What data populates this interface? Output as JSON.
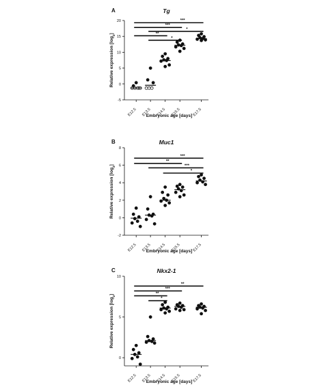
{
  "chart_data": [
    {
      "panel": "A",
      "type": "scatter",
      "title": "Tg",
      "xlabel": "Embryonic age [days]",
      "ylabel": "Relative expression [log",
      "ylabel_sub": "2",
      "ylabel_end": "]",
      "categories": [
        "E12.5",
        "E13.5",
        "E14.5",
        "E15.5",
        "E17.5"
      ],
      "ylim": [
        -5,
        20
      ],
      "yticks": [
        -5,
        0,
        5,
        10,
        15,
        20
      ],
      "points": [
        {
          "cat": 0,
          "y": 0.4,
          "open": false
        },
        {
          "cat": 0,
          "y": -0.6,
          "open": false
        },
        {
          "cat": 0,
          "y": -1.3,
          "open": true
        },
        {
          "cat": 0,
          "y": -1.3,
          "open": true
        },
        {
          "cat": 0,
          "y": -1.3,
          "open": true
        },
        {
          "cat": 0,
          "y": -1.3,
          "open": true
        },
        {
          "cat": 0,
          "y": -1.3,
          "open": true
        },
        {
          "cat": 1,
          "y": 5.0,
          "open": false
        },
        {
          "cat": 1,
          "y": 1.3,
          "open": false
        },
        {
          "cat": 1,
          "y": 0.4,
          "open": false
        },
        {
          "cat": 1,
          "y": -1.3,
          "open": true
        },
        {
          "cat": 1,
          "y": -1.3,
          "open": true
        },
        {
          "cat": 1,
          "y": -1.3,
          "open": true
        },
        {
          "cat": 2,
          "y": 9.5,
          "open": false
        },
        {
          "cat": 2,
          "y": 8.7,
          "open": false
        },
        {
          "cat": 2,
          "y": 8.0,
          "open": false
        },
        {
          "cat": 2,
          "y": 7.6,
          "open": false
        },
        {
          "cat": 2,
          "y": 7.4,
          "open": false
        },
        {
          "cat": 2,
          "y": 7.2,
          "open": false
        },
        {
          "cat": 2,
          "y": 6.0,
          "open": false
        },
        {
          "cat": 2,
          "y": 5.5,
          "open": false
        },
        {
          "cat": 3,
          "y": 13.8,
          "open": false
        },
        {
          "cat": 3,
          "y": 13.2,
          "open": false
        },
        {
          "cat": 3,
          "y": 12.6,
          "open": false
        },
        {
          "cat": 3,
          "y": 12.3,
          "open": false
        },
        {
          "cat": 3,
          "y": 12.1,
          "open": false
        },
        {
          "cat": 3,
          "y": 11.7,
          "open": false
        },
        {
          "cat": 3,
          "y": 11.2,
          "open": false
        },
        {
          "cat": 3,
          "y": 10.3,
          "open": false
        },
        {
          "cat": 4,
          "y": 15.8,
          "open": false
        },
        {
          "cat": 4,
          "y": 15.3,
          "open": false
        },
        {
          "cat": 4,
          "y": 14.9,
          "open": false
        },
        {
          "cat": 4,
          "y": 14.6,
          "open": false
        },
        {
          "cat": 4,
          "y": 14.3,
          "open": false
        },
        {
          "cat": 4,
          "y": 14.1,
          "open": false
        },
        {
          "cat": 4,
          "y": 13.9,
          "open": false
        },
        {
          "cat": 4,
          "y": 13.7,
          "open": false
        }
      ],
      "medians": [
        -1.3,
        -0.4,
        7.4,
        12.2,
        14.3
      ],
      "significance": [
        {
          "from": 0,
          "to": 4,
          "y": 19.3,
          "label": "***"
        },
        {
          "from": 0,
          "to": 3,
          "y": 17.8,
          "label": "***"
        },
        {
          "from": 1,
          "to": 4,
          "y": 16.6,
          "label": "*"
        },
        {
          "from": 0,
          "to": 2,
          "y": 15.2,
          "label": "**"
        },
        {
          "from": 1,
          "to": 3,
          "y": 13.8,
          "label": "*"
        }
      ]
    },
    {
      "panel": "B",
      "type": "scatter",
      "title": "Muc1",
      "xlabel": "Embryonic age [days]",
      "ylabel": "Relative expression [log",
      "ylabel_sub": "2",
      "ylabel_end": "]",
      "categories": [
        "E12.5",
        "E13.5",
        "E14.5",
        "E15.5",
        "E17.5"
      ],
      "ylim": [
        -2,
        8
      ],
      "yticks": [
        -2,
        0,
        2,
        4,
        6,
        8
      ],
      "points": [
        {
          "cat": 0,
          "y": 1.1,
          "open": false
        },
        {
          "cat": 0,
          "y": 0.4,
          "open": false
        },
        {
          "cat": 0,
          "y": 0.1,
          "open": false
        },
        {
          "cat": 0,
          "y": -0.1,
          "open": false
        },
        {
          "cat": 0,
          "y": -0.4,
          "open": false
        },
        {
          "cat": 0,
          "y": -0.6,
          "open": false
        },
        {
          "cat": 0,
          "y": -1.0,
          "open": false
        },
        {
          "cat": 1,
          "y": 2.4,
          "open": false
        },
        {
          "cat": 1,
          "y": 1.0,
          "open": false
        },
        {
          "cat": 1,
          "y": 0.4,
          "open": false
        },
        {
          "cat": 1,
          "y": 0.3,
          "open": false
        },
        {
          "cat": 1,
          "y": 0.2,
          "open": false
        },
        {
          "cat": 1,
          "y": -0.2,
          "open": false
        },
        {
          "cat": 1,
          "y": -0.7,
          "open": false
        },
        {
          "cat": 2,
          "y": 3.5,
          "open": false
        },
        {
          "cat": 2,
          "y": 2.9,
          "open": false
        },
        {
          "cat": 2,
          "y": 2.6,
          "open": false
        },
        {
          "cat": 2,
          "y": 2.2,
          "open": false
        },
        {
          "cat": 2,
          "y": 2.0,
          "open": false
        },
        {
          "cat": 2,
          "y": 1.9,
          "open": false
        },
        {
          "cat": 2,
          "y": 1.7,
          "open": false
        },
        {
          "cat": 2,
          "y": 1.4,
          "open": false
        },
        {
          "cat": 3,
          "y": 3.8,
          "open": false
        },
        {
          "cat": 3,
          "y": 3.6,
          "open": false
        },
        {
          "cat": 3,
          "y": 3.5,
          "open": false
        },
        {
          "cat": 3,
          "y": 3.3,
          "open": false
        },
        {
          "cat": 3,
          "y": 3.1,
          "open": false
        },
        {
          "cat": 3,
          "y": 2.9,
          "open": false
        },
        {
          "cat": 3,
          "y": 2.6,
          "open": false
        },
        {
          "cat": 3,
          "y": 2.4,
          "open": false
        },
        {
          "cat": 4,
          "y": 4.9,
          "open": false
        },
        {
          "cat": 4,
          "y": 4.7,
          "open": false
        },
        {
          "cat": 4,
          "y": 4.5,
          "open": false
        },
        {
          "cat": 4,
          "y": 4.3,
          "open": false
        },
        {
          "cat": 4,
          "y": 4.1,
          "open": false
        },
        {
          "cat": 4,
          "y": 4.0,
          "open": false
        },
        {
          "cat": 4,
          "y": 3.8,
          "open": false
        }
      ],
      "medians": [
        -0.05,
        0.3,
        2.0,
        3.2,
        4.2
      ],
      "significance": [
        {
          "from": 0,
          "to": 4,
          "y": 6.8,
          "label": "***"
        },
        {
          "from": 0,
          "to": 3,
          "y": 6.2,
          "label": "**"
        },
        {
          "from": 1,
          "to": 4,
          "y": 5.7,
          "label": "***"
        },
        {
          "from": 2,
          "to": 4,
          "y": 5.1,
          "label": "*"
        }
      ]
    },
    {
      "panel": "C",
      "type": "scatter",
      "title": "Nkx2-1",
      "xlabel": "Embryonic age [days]",
      "ylabel": "Relative expression [log",
      "ylabel_sub": "2",
      "ylabel_end": "]",
      "categories": [
        "E12.5",
        "E13.5",
        "E14.5",
        "E15.5",
        "E17.5"
      ],
      "ylim": [
        -1,
        10
      ],
      "yticks": [
        0,
        5,
        10
      ],
      "points": [
        {
          "cat": 0,
          "y": 1.5,
          "open": false
        },
        {
          "cat": 0,
          "y": 1.0,
          "open": false
        },
        {
          "cat": 0,
          "y": 0.6,
          "open": false
        },
        {
          "cat": 0,
          "y": 0.4,
          "open": false
        },
        {
          "cat": 0,
          "y": 0.1,
          "open": false
        },
        {
          "cat": 0,
          "y": -0.1,
          "open": false
        },
        {
          "cat": 0,
          "y": -0.8,
          "open": false
        },
        {
          "cat": 1,
          "y": 5.0,
          "open": false
        },
        {
          "cat": 1,
          "y": 2.6,
          "open": false
        },
        {
          "cat": 1,
          "y": 2.3,
          "open": false
        },
        {
          "cat": 1,
          "y": 2.1,
          "open": false
        },
        {
          "cat": 1,
          "y": 2.0,
          "open": false
        },
        {
          "cat": 1,
          "y": 1.9,
          "open": false
        },
        {
          "cat": 1,
          "y": 1.8,
          "open": false
        },
        {
          "cat": 2,
          "y": 6.8,
          "open": false
        },
        {
          "cat": 2,
          "y": 6.5,
          "open": false
        },
        {
          "cat": 2,
          "y": 6.2,
          "open": false
        },
        {
          "cat": 2,
          "y": 6.1,
          "open": false
        },
        {
          "cat": 2,
          "y": 6.0,
          "open": false
        },
        {
          "cat": 2,
          "y": 5.9,
          "open": false
        },
        {
          "cat": 2,
          "y": 5.7,
          "open": false
        },
        {
          "cat": 2,
          "y": 5.5,
          "open": false
        },
        {
          "cat": 3,
          "y": 6.7,
          "open": false
        },
        {
          "cat": 3,
          "y": 6.5,
          "open": false
        },
        {
          "cat": 3,
          "y": 6.4,
          "open": false
        },
        {
          "cat": 3,
          "y": 6.3,
          "open": false
        },
        {
          "cat": 3,
          "y": 6.2,
          "open": false
        },
        {
          "cat": 3,
          "y": 6.0,
          "open": false
        },
        {
          "cat": 3,
          "y": 5.9,
          "open": false
        },
        {
          "cat": 3,
          "y": 5.8,
          "open": false
        },
        {
          "cat": 4,
          "y": 6.6,
          "open": false
        },
        {
          "cat": 4,
          "y": 6.4,
          "open": false
        },
        {
          "cat": 4,
          "y": 6.3,
          "open": false
        },
        {
          "cat": 4,
          "y": 6.2,
          "open": false
        },
        {
          "cat": 4,
          "y": 6.1,
          "open": false
        },
        {
          "cat": 4,
          "y": 6.0,
          "open": false
        },
        {
          "cat": 4,
          "y": 5.8,
          "open": false
        },
        {
          "cat": 4,
          "y": 5.4,
          "open": false
        }
      ],
      "medians": [
        0.4,
        2.1,
        6.1,
        6.3,
        6.2
      ],
      "significance": [
        {
          "from": 0,
          "to": 4,
          "y": 8.8,
          "label": "**"
        },
        {
          "from": 0,
          "to": 3,
          "y": 8.2,
          "label": "***"
        },
        {
          "from": 0,
          "to": 2,
          "y": 7.6,
          "label": "**"
        },
        {
          "from": 1,
          "to": 2,
          "y": 7.0,
          "label": "*"
        }
      ]
    }
  ]
}
